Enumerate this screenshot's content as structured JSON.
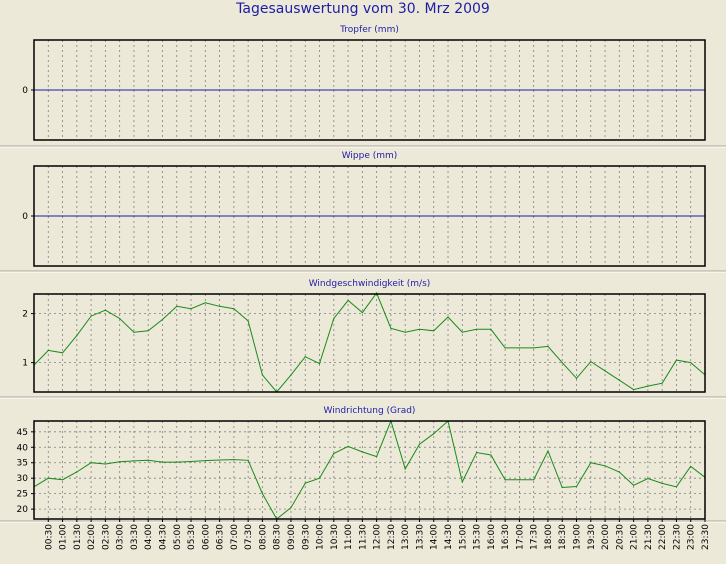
{
  "title": "Tagesauswertung vom 30. Mrz 2009",
  "colors": {
    "background": "#ece9d8",
    "title": "#1d1da8",
    "zero_line": "#1d1da8",
    "series": "#1a8a1a",
    "grid": "#808080"
  },
  "x_labels": [
    "00:30",
    "01:00",
    "01:30",
    "02:00",
    "02:30",
    "03:00",
    "03:30",
    "04:00",
    "04:30",
    "05:00",
    "05:30",
    "06:00",
    "06:30",
    "07:00",
    "07:30",
    "08:00",
    "08:30",
    "09:00",
    "09:30",
    "10:00",
    "10:30",
    "11:00",
    "11:30",
    "12:00",
    "12:30",
    "13:00",
    "13:30",
    "14:00",
    "14:30",
    "15:00",
    "15:30",
    "16:00",
    "16:30",
    "17:00",
    "17:30",
    "18:00",
    "18:30",
    "19:00",
    "19:30",
    "20:00",
    "20:30",
    "21:00",
    "21:30",
    "22:00",
    "22:30",
    "23:00",
    "23:30"
  ],
  "chart_data": [
    {
      "type": "line",
      "title": "Tropfer (mm)",
      "yticks": [
        "0"
      ],
      "ylim": [
        -1,
        1
      ],
      "grid": true,
      "series": [
        {
          "values": [
            0,
            0,
            0,
            0,
            0,
            0,
            0,
            0,
            0,
            0,
            0,
            0,
            0,
            0,
            0,
            0,
            0,
            0,
            0,
            0,
            0,
            0,
            0,
            0,
            0,
            0,
            0,
            0,
            0,
            0,
            0,
            0,
            0,
            0,
            0,
            0,
            0,
            0,
            0,
            0,
            0,
            0,
            0,
            0,
            0,
            0,
            0,
            0
          ]
        }
      ]
    },
    {
      "type": "line",
      "title": "Wippe (mm)",
      "yticks": [
        "0"
      ],
      "ylim": [
        -1,
        1
      ],
      "grid": true,
      "series": [
        {
          "values": [
            0,
            0,
            0,
            0,
            0,
            0,
            0,
            0,
            0,
            0,
            0,
            0,
            0,
            0,
            0,
            0,
            0,
            0,
            0,
            0,
            0,
            0,
            0,
            0,
            0,
            0,
            0,
            0,
            0,
            0,
            0,
            0,
            0,
            0,
            0,
            0,
            0,
            0,
            0,
            0,
            0,
            0,
            0,
            0,
            0,
            0,
            0,
            0
          ]
        }
      ]
    },
    {
      "type": "line",
      "title": "Windgeschwindigkeit (m/s)",
      "yticks": [
        "1",
        "2"
      ],
      "ylim": [
        0.4,
        2.4
      ],
      "grid": true,
      "series": [
        {
          "values": [
            0.95,
            1.25,
            1.2,
            1.55,
            1.95,
            2.07,
            1.9,
            1.62,
            1.65,
            1.88,
            2.15,
            2.1,
            2.22,
            2.15,
            2.1,
            1.85,
            0.75,
            0.4,
            0.75,
            1.12,
            0.98,
            1.9,
            2.27,
            2.02,
            2.42,
            1.7,
            1.62,
            1.68,
            1.65,
            1.93,
            1.62,
            1.68,
            1.68,
            1.3,
            1.3,
            1.3,
            1.33,
            1.0,
            0.68,
            1.02,
            0.83,
            0.64,
            0.45,
            0.52,
            0.58,
            1.05,
            1.0,
            0.75
          ]
        }
      ]
    },
    {
      "type": "line",
      "title": "Windrichtung (Grad)",
      "yticks": [
        "20",
        "25",
        "30",
        "35",
        "40",
        "45"
      ],
      "ylim": [
        16.8,
        48.5
      ],
      "grid": true,
      "series": [
        {
          "values": [
            27.2,
            30,
            29.5,
            32,
            35,
            34.6,
            35.3,
            35.6,
            35.8,
            35.2,
            35.2,
            35.4,
            35.7,
            35.9,
            36,
            35.8,
            25,
            16.8,
            20.5,
            28.4,
            30,
            38,
            40.3,
            38.5,
            37,
            48.5,
            33,
            41,
            44.4,
            48.5,
            28.8,
            38.3,
            37.5,
            29.5,
            29.5,
            29.5,
            38.8,
            27,
            27.3,
            35,
            34,
            32,
            27.7,
            29.9,
            28.3,
            27.2,
            33.8,
            30.3
          ]
        }
      ]
    }
  ]
}
